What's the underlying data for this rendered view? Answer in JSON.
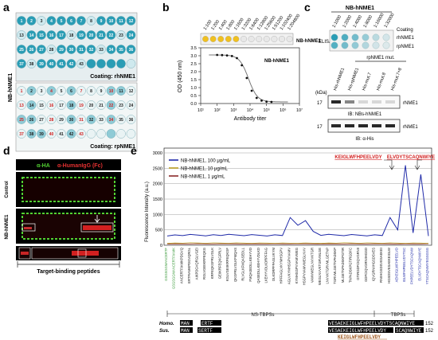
{
  "panels": {
    "a": {
      "label": "a",
      "side_label": "NB-hNME1",
      "plate1_caption": "Coating: rhNME1",
      "plate2_caption": "Coating: rpNME1",
      "plate1_numbers": [
        "1",
        "2",
        "3",
        "4",
        "5",
        "6",
        "7",
        "8",
        "9",
        "10",
        "11",
        "12",
        "13",
        "14",
        "15",
        "16",
        "17",
        "18",
        "19",
        "20",
        "21",
        "22",
        "23",
        "24",
        "25",
        "26",
        "27",
        "28",
        "29",
        "30",
        "31",
        "32",
        "33",
        "34",
        "35",
        "36",
        "37",
        "38",
        "39",
        "40",
        "41",
        "42",
        "43"
      ],
      "plate2_numbers": [
        "1",
        "2",
        "3",
        "4",
        "5",
        "6",
        "7",
        "8",
        "9",
        "10",
        "11",
        "12",
        "13",
        "14",
        "15",
        "16",
        "17",
        "18",
        "19",
        "20",
        "21",
        "22",
        "23",
        "24",
        "25",
        "26",
        "27",
        "28",
        "29",
        "30",
        "31",
        "32",
        "33",
        "34",
        "35",
        "36",
        "37",
        "38",
        "39",
        "40",
        "41",
        "42",
        "43"
      ]
    },
    "b": {
      "label": "b",
      "dilutions": [
        "1:100",
        "1:200",
        "1:400",
        "1:800",
        "1:1600",
        "1:3200",
        "1:6400",
        "1:12800",
        "1:25600",
        "1:51200",
        "1:102400",
        "1:204800"
      ],
      "strip_label": "NB-hNME1",
      "curve_label": "NB-hNME1",
      "ylabel": "OD (450 nm)",
      "xlabel": "Antibody titer",
      "yticks": [
        "0.0",
        "0.5",
        "1.0",
        "1.5",
        "2.0",
        "2.5",
        "3.0",
        "3.5"
      ],
      "xticks": [
        "10¹",
        "10²",
        "10³",
        "10⁴",
        "10⁵",
        "10⁶",
        "10⁷"
      ]
    },
    "c": {
      "label": "c",
      "top_header": "NB-hNME1",
      "top_dilutions": [
        "1:1000",
        "1:2000",
        "1:4000",
        "1:8000",
        "1:16000",
        "1:32000"
      ],
      "elisa_label": "ELISA",
      "row_labels": [
        "Coating",
        "rhNME1",
        "rpNME1"
      ],
      "mut_header": "rpNME1 mut.",
      "lanes": [
        "His-rhNME1",
        "His-rpNME1",
        "His-mut.7",
        "His-mut.8",
        "His-mut.7+8"
      ],
      "kda": "(kDa)",
      "mw": "17",
      "band_label": "rNME1",
      "ib1": "IB: NBs-hNME1",
      "ib2": "IB: α-His"
    },
    "d": {
      "label": "d",
      "header_green": "α-HA",
      "header_red": "α-HumanIgG (Fc)",
      "row1": "Control",
      "row2": "NB-hNME1",
      "caption": "Target-binding peptides"
    },
    "e": {
      "label": "e",
      "ylabel": "Fluorescence Intensity (a.u.)",
      "yticks": [
        "0",
        "500",
        "1000",
        "1500",
        "2000",
        "2500",
        "3000"
      ],
      "legend": [
        "NB-hNME1, 100 μg/mL",
        "NB-hNME1, 10 μg/mL",
        "NB-hNME1, 1 μg/mL"
      ],
      "peptide1": "KEIGLWFHPEELVDY",
      "peptide2": "ELVDYTSCAQNWIYE",
      "peptides_x": [
        "GSGSGGMANCERTF",
        "GSGSGGMANCERTFIAMK",
        "ANCERTFIAMKPDGVQ",
        "ERTFIAMKPDGVQRGL",
        "AIKPDGVQRGLVGEI",
        "RGLVGEIIKRFEQKG",
        "KRFEQKGFRLVGLK",
        "GEIIKRFEQKGFRLV",
        "KGLVGEIIKRFEQKGF",
        "QKGFRLVGLKFMQAS",
        "RLVGLKFMQASEDLL",
        "FMQASEDLLKEHYVD",
        "QASEDLLKEHYVDLKD",
        "LKEHYVDLKDRPFFAG",
        "DLKDRPFFAGLVKYM",
        "HPFFAGLVKYMHSGPV",
        "AGLVKYMHSGPVVAMV",
        "KYMHSGPVVAMVWEG",
        "HSGPVVAMVWEGLNVV",
        "VAMVWEGLNVVKTGR",
        "WEGLNVVKTGRVMLGE",
        "LNVVKTGRVMLGETNP",
        "TGRVMLGETNPADSKP",
        "MLGETNPADSKPGTIR",
        "TNPADSKPGTIRGDFC",
        "GTIRGDFCIQVGRNII",
        "GDFCIQVGRNIIHGSD",
        "IQVGRNIIHGSDSVES",
        "RNIIHGSDSVESAEKEI",
        "HGSDSVESAEKEIGLW",
        "AEKEIGLWFHPEELVD",
        "IGLWFHPEELVDYTSC",
        "FHPEELVDYTSCAQNW",
        "ELVDYTSCAQNWIYE",
        "YTSCAQNWIYEGSGSG"
      ],
      "region1": "NS-TBPSs",
      "region2": "TBPSs",
      "species": [
        "Homo.",
        "Sus."
      ],
      "aln_seq1": [
        "MAN",
        "ERTF",
        "VESAEKEIGLWFHPEELVDYTSCAQNWIYE"
      ],
      "aln_seq2": [
        "MAN",
        "SERTF",
        "VESAEKEIGLWFHPEELVDY",
        "SCAQNWIYE"
      ],
      "aln_num": "152",
      "aln_pep1": "KEIGLWFHPEELVDY",
      "aln_pep2": "ELVDYTSCAQNWIYE"
    }
  },
  "colors": {
    "well_blue": "#2a9db5",
    "well_light": "#c8e8ee",
    "green": "#52d132",
    "red": "#d22020",
    "navy": "#1f2aa8",
    "olive": "#b79b22",
    "darkred": "#8b2a2a",
    "peptide_brown": "#a05a20"
  }
}
